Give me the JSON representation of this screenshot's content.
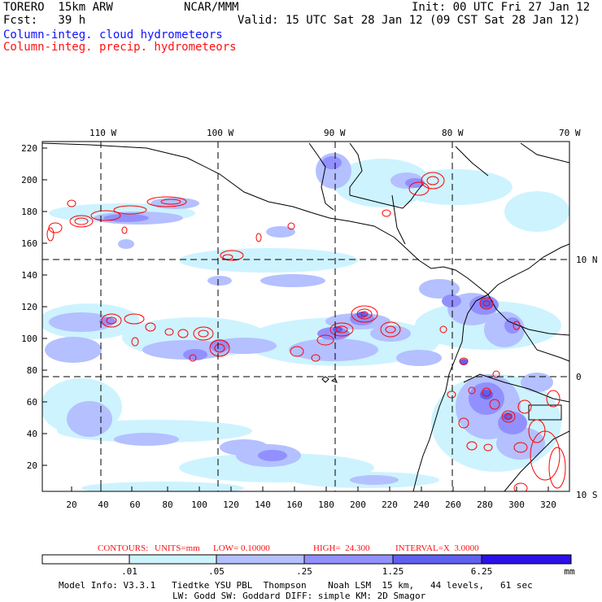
{
  "header": {
    "model": "TORERO  15km ARW",
    "org": "NCAR/MMM",
    "init": "Init: 00 UTC Fri 27 Jan 12",
    "fcst": "Fcst:   39 h",
    "valid": "Valid: 15 UTC Sat 28 Jan 12 (09 CST Sat 28 Jan 12)",
    "field_cloud": "Column-integ. cloud hydrometeors",
    "field_precip": "Column-integ. precip. hydrometeors"
  },
  "map": {
    "lon_labels": [
      "110 W",
      "100 W",
      "90 W",
      "80 W",
      "70 W"
    ],
    "lat_labels": [
      "10 N",
      "0",
      "10 S"
    ],
    "y_ticks": [
      "220",
      "200",
      "180",
      "160",
      "140",
      "120",
      "100",
      "80",
      "60",
      "40",
      "20"
    ],
    "x_ticks": [
      "20",
      "40",
      "60",
      "80",
      "100",
      "120",
      "140",
      "160",
      "180",
      "200",
      "220",
      "240",
      "260",
      "280",
      "300",
      "320"
    ],
    "contour_color": "#ff0000",
    "coast_color": "#000000"
  },
  "contour_info": {
    "contours": "CONTOURS:",
    "units": "UNITS=mm",
    "low": "LOW= 0.10000",
    "high": "HIGH=  24.300",
    "interval": "INTERVAL=X  3.0000"
  },
  "colorbar": {
    "labels": [
      ".01",
      ".05",
      ".25",
      "1.25",
      "6.25",
      "mm"
    ],
    "colors": [
      "#ffffff",
      "#cdf3ff",
      "#b4c0ff",
      "#9290ff",
      "#6060f0",
      "#2c10e8"
    ]
  },
  "footer": {
    "line1": "Model Info: V3.3.1   Tiedtke YSU PBL  Thompson    Noah LSM  15 km,   44 levels,   61 sec",
    "line2": "LW: Godd SW: Goddard DIFF: simple KM: 2D Smagor"
  }
}
